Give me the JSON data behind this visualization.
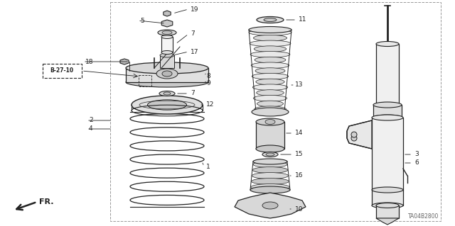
{
  "diagram_code": "TA04B2800",
  "bg_color": "#ffffff",
  "line_color": "#222222",
  "gray_fill": "#e8e8e8",
  "dark_gray": "#b0b0b0",
  "figsize": [
    6.4,
    3.19
  ],
  "dpi": 100,
  "xlim": [
    0,
    640
  ],
  "ylim": [
    0,
    319
  ]
}
